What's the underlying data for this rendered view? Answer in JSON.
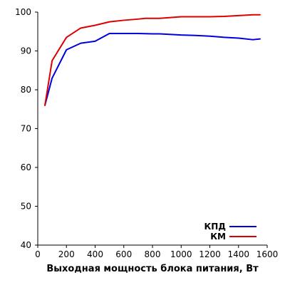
{
  "chart_data": {
    "type": "line",
    "xlabel": "Выходная мощность блока питания, Вт",
    "ylabel": "",
    "xlim": [
      0,
      1600
    ],
    "ylim": [
      40,
      100
    ],
    "xticks": [
      "0",
      "200",
      "400",
      "600",
      "800",
      "1000",
      "1200",
      "1400",
      "1600"
    ],
    "yticks": [
      "40",
      "50",
      "60",
      "70",
      "80",
      "90",
      "100"
    ],
    "grid": false,
    "legend_position": "bottom-right",
    "series": [
      {
        "name": "КПД",
        "color": "#0000dd",
        "x": [
          50,
          100,
          200,
          300,
          400,
          500,
          600,
          700,
          800,
          850,
          1000,
          1100,
          1200,
          1300,
          1400,
          1500,
          1550
        ],
        "y": [
          76,
          83,
          90.3,
          92,
          92.5,
          94.5,
          94.5,
          94.5,
          94.4,
          94.4,
          94.1,
          94,
          93.8,
          93.5,
          93.3,
          92.9,
          93.1
        ]
      },
      {
        "name": "КМ",
        "color": "#dd0000",
        "x": [
          50,
          100,
          200,
          300,
          400,
          500,
          600,
          700,
          750,
          850,
          1000,
          1100,
          1200,
          1300,
          1400,
          1500,
          1550
        ],
        "y": [
          76,
          87.5,
          93.5,
          95.9,
          96.6,
          97.5,
          97.9,
          98.2,
          98.4,
          98.4,
          98.8,
          98.8,
          98.8,
          98.9,
          99.1,
          99.3,
          99.3
        ]
      }
    ]
  }
}
